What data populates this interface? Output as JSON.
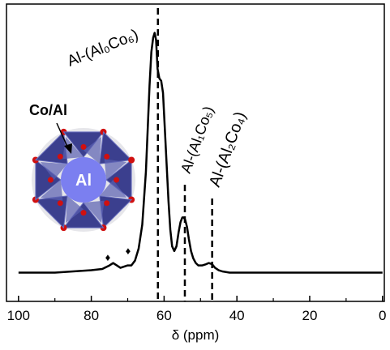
{
  "chart_data": {
    "type": "line",
    "x_label": "δ (ppm)",
    "xlim": [
      103.3,
      -0.5
    ],
    "xticks": [
      100,
      80,
      60,
      40,
      20,
      0
    ],
    "xminorticks": [
      90,
      70,
      50,
      30,
      10
    ],
    "ylim": [
      -0.12,
      1.12
    ],
    "series": [
      {
        "color": "#000000",
        "x": [
          100,
          95,
          90,
          85,
          80,
          77,
          75,
          74,
          73,
          72,
          71,
          70,
          69,
          68,
          67,
          66,
          65,
          64.5,
          64,
          63.5,
          63,
          62.6,
          62.2,
          61.8,
          61.3,
          60.8,
          60.3,
          59.8,
          59.3,
          58.8,
          58.3,
          57.8,
          57.2,
          56.6,
          56,
          55.5,
          55,
          54.6,
          54.2,
          53.7,
          53.2,
          52.6,
          52,
          51.3,
          50.6,
          49.5,
          48.5,
          47.7,
          46.8,
          46,
          45,
          44,
          42,
          40,
          35,
          30,
          20,
          10,
          0
        ],
        "values": [
          0,
          0,
          0,
          0.005,
          0.01,
          0.015,
          0.03,
          0.04,
          0.03,
          0.02,
          0.025,
          0.03,
          0.03,
          0.05,
          0.1,
          0.2,
          0.42,
          0.6,
          0.78,
          0.92,
          0.98,
          1.0,
          0.97,
          0.85,
          0.81,
          0.8,
          0.75,
          0.6,
          0.45,
          0.3,
          0.18,
          0.11,
          0.09,
          0.11,
          0.17,
          0.21,
          0.23,
          0.23,
          0.22,
          0.19,
          0.14,
          0.09,
          0.06,
          0.04,
          0.03,
          0.03,
          0.035,
          0.04,
          0.035,
          0.02,
          0.01,
          0.005,
          0,
          0,
          0,
          0,
          0,
          0,
          0
        ]
      }
    ],
    "reference_lines": [
      61.7,
      54.3,
      46.8
    ],
    "annotations": [
      "Al-(Al₀Co₆)",
      "Al-(Al₁Co₅)",
      "Al-(Al₂Co₄)",
      "♦",
      "♦"
    ],
    "inset_labels": [
      "Co/Al",
      "Al"
    ]
  }
}
